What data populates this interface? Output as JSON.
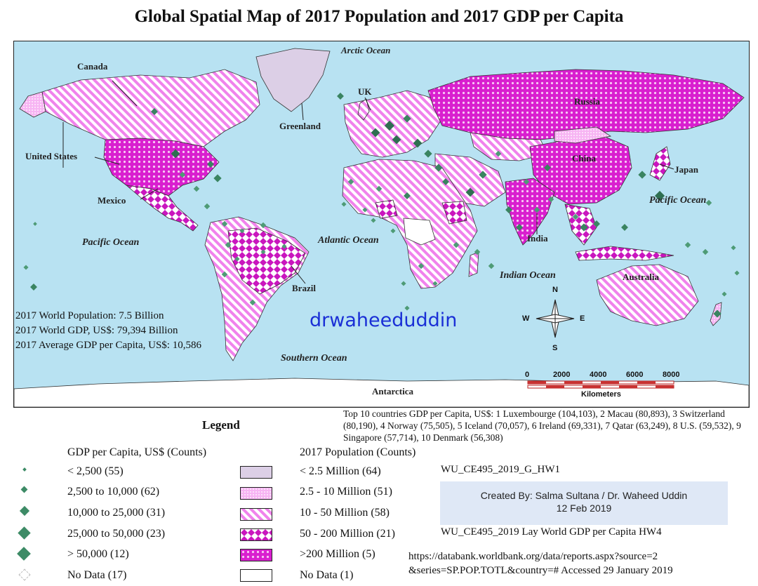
{
  "title": "Global Spatial Map of 2017 Population and 2017 GDP per Capita",
  "map": {
    "oceans": {
      "arctic": "Arctic Ocean",
      "pacific_east": "Pacific Ocean",
      "pacific_west": "Pacific Ocean",
      "atlantic": "Atlantic Ocean",
      "indian": "Indian Ocean",
      "southern": "Southern Ocean"
    },
    "countries": {
      "canada": "Canada",
      "united_states": "United States",
      "greenland": "Greenland",
      "uk": "UK",
      "russia": "Russia",
      "china": "China",
      "japan": "Japan",
      "mexico": "Mexico",
      "india": "India",
      "brazil": "Brazil",
      "australia": "Australia",
      "antarctica": "Antarctica"
    },
    "stats": {
      "population": "2017 World Population: 7.5 Billion",
      "gdp": "2017 World GDP, US$: 79,394 Billion",
      "gdp_per_capita": "2017 Average GDP per Capita, US$: 10,586"
    },
    "watermark": "drwaheeduddin",
    "compass": {
      "n": "N",
      "s": "S",
      "e": "E",
      "w": "W"
    },
    "scale_bar": {
      "ticks": [
        "0",
        "2000",
        "4000",
        "6000",
        "8000"
      ],
      "units": "Kilometers"
    }
  },
  "top10": "Top 10 countries GDP per Capita, US$: 1 Luxembourge (104,103), 2 Macau (80,893), 3 Switzerland (80,190), 4 Norway (75,505), 5 Iceland (70,057), 6 Ireland (69,331), 7 Qatar (63,249), 8 U.S. (59,532), 9 Singapore (57,714), 10 Denmark (56,308)",
  "legend": {
    "title": "Legend",
    "gdp_heading": "GDP per Capita, US$ (Counts)",
    "pop_heading": "2017 Population (Counts)",
    "gdp_classes": [
      {
        "label": "< 2,500 (55)",
        "color": "#4e9b76"
      },
      {
        "label": "2,500 to 10,000 (62)",
        "color": "#44916c"
      },
      {
        "label": "10,000 to 25,000 (31)",
        "color": "#3a8461"
      },
      {
        "label": "25,000 to 50,000 (23)",
        "color": "#2f6f51"
      },
      {
        "label": "> 50,000 (12)",
        "color": "#285e45"
      },
      {
        "label": "No Data (17)",
        "color": "#ffffff"
      }
    ],
    "pop_classes": [
      {
        "label": "< 2.5 Million (64)",
        "pattern": "lavender-fill"
      },
      {
        "label": "2.5 - 10 Million (51)",
        "pattern": "pink-dots"
      },
      {
        "label": "10 - 50 Million (58)",
        "pattern": "pink-diagonal-stripes"
      },
      {
        "label": "50 - 200 Million (21)",
        "pattern": "magenta-diamonds"
      },
      {
        "label": ">200 Million (5)",
        "pattern": "magenta-cross-hatch"
      },
      {
        "label": "No Data (1)",
        "pattern": "white-fill"
      }
    ]
  },
  "credits": {
    "course_top": "WU_CE495_2019_G_HW1",
    "created_by": "Created By: Salma Sultana / Dr. Waheed Uddin",
    "date": "12 Feb 2019",
    "course_bottom": "WU_CE495_2019 Lay World GDP per Capita HW4",
    "source_line1": "https://databank.worldbank.org/data/reports.aspx?source=2",
    "source_line2": "&series=SP.POP.TOTL&country=#   Accessed 29 January 2019"
  },
  "colors": {
    "ocean": "#b8e2f2",
    "lavender": "#dccfe6",
    "pink": "#f39ff0",
    "magenta": "#d21ac8",
    "marker_green": "#3d8b66",
    "watermark_blue": "#1a2fd6"
  }
}
